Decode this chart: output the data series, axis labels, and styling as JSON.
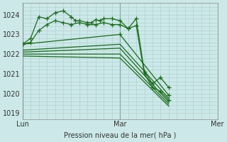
{
  "bg_color": "#cce8e8",
  "grid_color": "#aacccc",
  "line_color": "#1a6b1a",
  "marker_color": "#1a6b1a",
  "ylabel_ticks": [
    1019,
    1020,
    1021,
    1022,
    1023,
    1024
  ],
  "ylim": [
    1018.7,
    1024.6
  ],
  "xlim": [
    0,
    48
  ],
  "xlabel": "Pression niveau de la mer( hPa )",
  "xtick_positions": [
    0,
    24,
    48
  ],
  "xtick_labels": [
    "Lun",
    "Mar",
    "Mer"
  ],
  "vlines": [
    0,
    24,
    48
  ],
  "series": [
    {
      "x": [
        0,
        2,
        4,
        6,
        8,
        10,
        12,
        13,
        14,
        16,
        17,
        18,
        19,
        20,
        22,
        24,
        26,
        28,
        30,
        32,
        34,
        36
      ],
      "y": [
        1022.5,
        1022.8,
        1023.9,
        1023.8,
        1024.1,
        1024.2,
        1023.9,
        1023.7,
        1023.7,
        1023.6,
        1023.6,
        1023.75,
        1023.7,
        1023.8,
        1023.8,
        1023.7,
        1023.3,
        1023.8,
        1021.1,
        1020.5,
        1020.8,
        1020.3
      ],
      "markers": true
    },
    {
      "x": [
        0,
        2,
        4,
        6,
        8,
        10,
        12,
        14,
        16,
        18,
        20,
        22,
        24,
        26,
        28,
        30,
        32,
        34,
        36
      ],
      "y": [
        1022.5,
        1022.6,
        1023.2,
        1023.5,
        1023.7,
        1023.6,
        1023.5,
        1023.6,
        1023.5,
        1023.5,
        1023.6,
        1023.5,
        1023.5,
        1023.3,
        1023.45,
        1021.0,
        1020.3,
        1020.1,
        1019.65
      ],
      "markers": true
    },
    {
      "x": [
        0,
        24,
        36
      ],
      "y": [
        1022.5,
        1023.0,
        1019.9
      ],
      "markers": true
    },
    {
      "x": [
        0,
        24,
        36
      ],
      "y": [
        1022.2,
        1022.5,
        1019.75
      ],
      "markers": false
    },
    {
      "x": [
        0,
        24,
        36
      ],
      "y": [
        1022.1,
        1022.3,
        1019.55
      ],
      "markers": false
    },
    {
      "x": [
        0,
        24,
        36
      ],
      "y": [
        1022.0,
        1022.0,
        1019.45
      ],
      "markers": false
    },
    {
      "x": [
        0,
        24,
        36
      ],
      "y": [
        1021.9,
        1021.8,
        1019.35
      ],
      "markers": false
    }
  ],
  "marker_positions": [
    {
      "x": [
        0,
        2,
        4,
        6,
        8,
        10,
        12,
        13,
        14,
        16,
        17,
        18,
        19,
        20,
        22,
        24,
        26,
        28,
        30,
        32,
        34,
        36
      ],
      "y": [
        1022.5,
        1022.8,
        1023.9,
        1023.8,
        1024.1,
        1024.2,
        1023.9,
        1023.7,
        1023.7,
        1023.6,
        1023.6,
        1023.75,
        1023.7,
        1023.8,
        1023.8,
        1023.7,
        1023.3,
        1023.8,
        1021.1,
        1020.5,
        1020.8,
        1020.3
      ]
    },
    {
      "x": [
        0,
        2,
        4,
        6,
        8,
        10,
        12,
        14,
        16,
        18,
        20,
        22,
        24,
        26,
        28,
        30,
        32,
        34,
        36
      ],
      "y": [
        1022.5,
        1022.6,
        1023.2,
        1023.5,
        1023.7,
        1023.6,
        1023.5,
        1023.6,
        1023.5,
        1023.5,
        1023.6,
        1023.5,
        1023.5,
        1023.3,
        1023.45,
        1021.0,
        1020.3,
        1020.1,
        1019.65
      ]
    },
    {
      "x": [
        0,
        24,
        36
      ],
      "y": [
        1022.5,
        1023.0,
        1019.9
      ]
    }
  ]
}
